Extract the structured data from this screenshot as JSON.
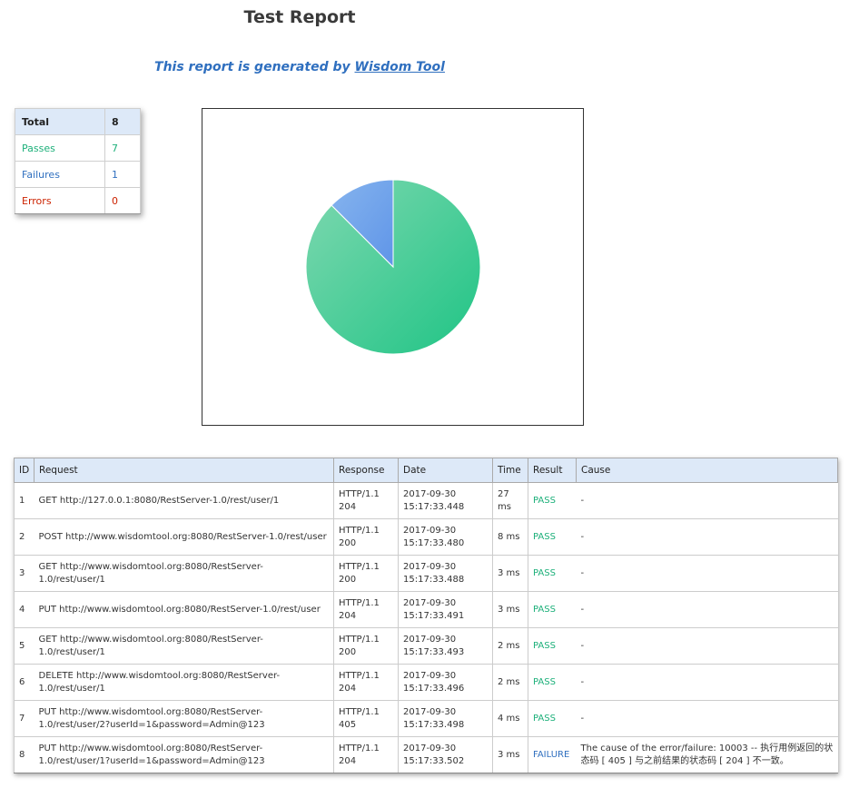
{
  "header": {
    "title": "Test Report",
    "subtitle_prefix": "This report is generated by ",
    "subtitle_link": "Wisdom Tool"
  },
  "summary": {
    "total_label": "Total",
    "total_value": "8",
    "passes_label": "Passes",
    "passes_value": "7",
    "failures_label": "Failures",
    "failures_value": "1",
    "errors_label": "Errors",
    "errors_value": "0"
  },
  "colors": {
    "pass": "#1db07a",
    "failure": "#2f6fbf",
    "error": "#cc2200",
    "header_bg": "#dde9f8"
  },
  "pie": {
    "slices": [
      {
        "value": 7,
        "color_from": "#7fd8b0",
        "color_to": "#1fc485"
      },
      {
        "value": 1,
        "color_from": "#86b4ee",
        "color_to": "#5f95e8"
      }
    ]
  },
  "table": {
    "headers": [
      "ID",
      "Request",
      "Response",
      "Date",
      "Time",
      "Result",
      "Cause"
    ],
    "rows": [
      {
        "id": "1",
        "request": "GET http://127.0.0.1:8080/RestServer-1.0/rest/user/1",
        "response": [
          "HTTP/1.1",
          "204"
        ],
        "date": [
          "2017-09-30",
          "15:17:33.448"
        ],
        "time": "27 ms",
        "result": "PASS",
        "cause": "-"
      },
      {
        "id": "2",
        "request": "POST http://www.wisdomtool.org:8080/RestServer-1.0/rest/user",
        "response": [
          "HTTP/1.1",
          "200"
        ],
        "date": [
          "2017-09-30",
          "15:17:33.480"
        ],
        "time": "8 ms",
        "result": "PASS",
        "cause": "-"
      },
      {
        "id": "3",
        "request": "GET http://www.wisdomtool.org:8080/RestServer-1.0/rest/user/1",
        "response": [
          "HTTP/1.1",
          "200"
        ],
        "date": [
          "2017-09-30",
          "15:17:33.488"
        ],
        "time": "3 ms",
        "result": "PASS",
        "cause": "-"
      },
      {
        "id": "4",
        "request": "PUT http://www.wisdomtool.org:8080/RestServer-1.0/rest/user",
        "response": [
          "HTTP/1.1",
          "204"
        ],
        "date": [
          "2017-09-30",
          "15:17:33.491"
        ],
        "time": "3 ms",
        "result": "PASS",
        "cause": "-"
      },
      {
        "id": "5",
        "request": "GET http://www.wisdomtool.org:8080/RestServer-1.0/rest/user/1",
        "response": [
          "HTTP/1.1",
          "200"
        ],
        "date": [
          "2017-09-30",
          "15:17:33.493"
        ],
        "time": "2 ms",
        "result": "PASS",
        "cause": "-"
      },
      {
        "id": "6",
        "request": "DELETE http://www.wisdomtool.org:8080/RestServer-1.0/rest/user/1",
        "response": [
          "HTTP/1.1",
          "204"
        ],
        "date": [
          "2017-09-30",
          "15:17:33.496"
        ],
        "time": "2 ms",
        "result": "PASS",
        "cause": "-"
      },
      {
        "id": "7",
        "request": "PUT http://www.wisdomtool.org:8080/RestServer-1.0/rest/user/2?userId=1&password=Admin@123",
        "response": [
          "HTTP/1.1",
          "405"
        ],
        "date": [
          "2017-09-30",
          "15:17:33.498"
        ],
        "time": "4 ms",
        "result": "PASS",
        "cause": "-"
      },
      {
        "id": "8",
        "request": "PUT http://www.wisdomtool.org:8080/RestServer-1.0/rest/user/1?userId=1&password=Admin@123",
        "response": [
          "HTTP/1.1",
          "204"
        ],
        "date": [
          "2017-09-30",
          "15:17:33.502"
        ],
        "time": "3 ms",
        "result": "FAILURE",
        "cause": "The cause of the error/failure: 10003 -- 执行用例返回的状态码 [ 405 ] 与之前结果的状态码 [ 204 ] 不一致。"
      }
    ]
  }
}
